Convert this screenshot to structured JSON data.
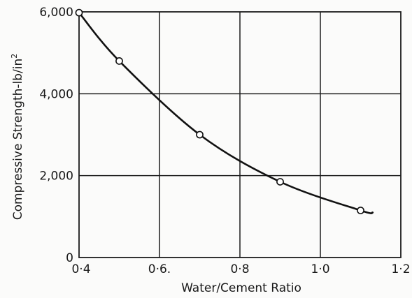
{
  "chart_data": {
    "type": "line",
    "title": "",
    "xlabel": "Water/Cement Ratio",
    "ylabel": "Compressive Strength-lb/in",
    "ylabel_superscript": "2",
    "xlim": [
      0.4,
      1.2
    ],
    "ylim": [
      0,
      6000
    ],
    "x_ticks": [
      0.4,
      0.6,
      0.8,
      1.0,
      1.2
    ],
    "x_tick_labels": [
      "0·4",
      "0·6.",
      "0·8",
      "1·0",
      "1·2"
    ],
    "y_ticks": [
      0,
      2000,
      4000,
      6000
    ],
    "y_tick_labels": [
      "0",
      "2,000",
      "4,000",
      "6,000"
    ],
    "grid": true,
    "series": [
      {
        "values": [
          {
            "x": 0.4,
            "y": 5980
          },
          {
            "x": 0.5,
            "y": 4800
          },
          {
            "x": 0.7,
            "y": 3000
          },
          {
            "x": 0.9,
            "y": 1850
          },
          {
            "x": 1.1,
            "y": 1150
          }
        ],
        "curve_end": {
          "x": 1.13,
          "y": 1100
        }
      }
    ],
    "colors": {
      "line": "#111111",
      "grid": "#1c1c1c",
      "marker_fill": "#ffffff"
    }
  }
}
